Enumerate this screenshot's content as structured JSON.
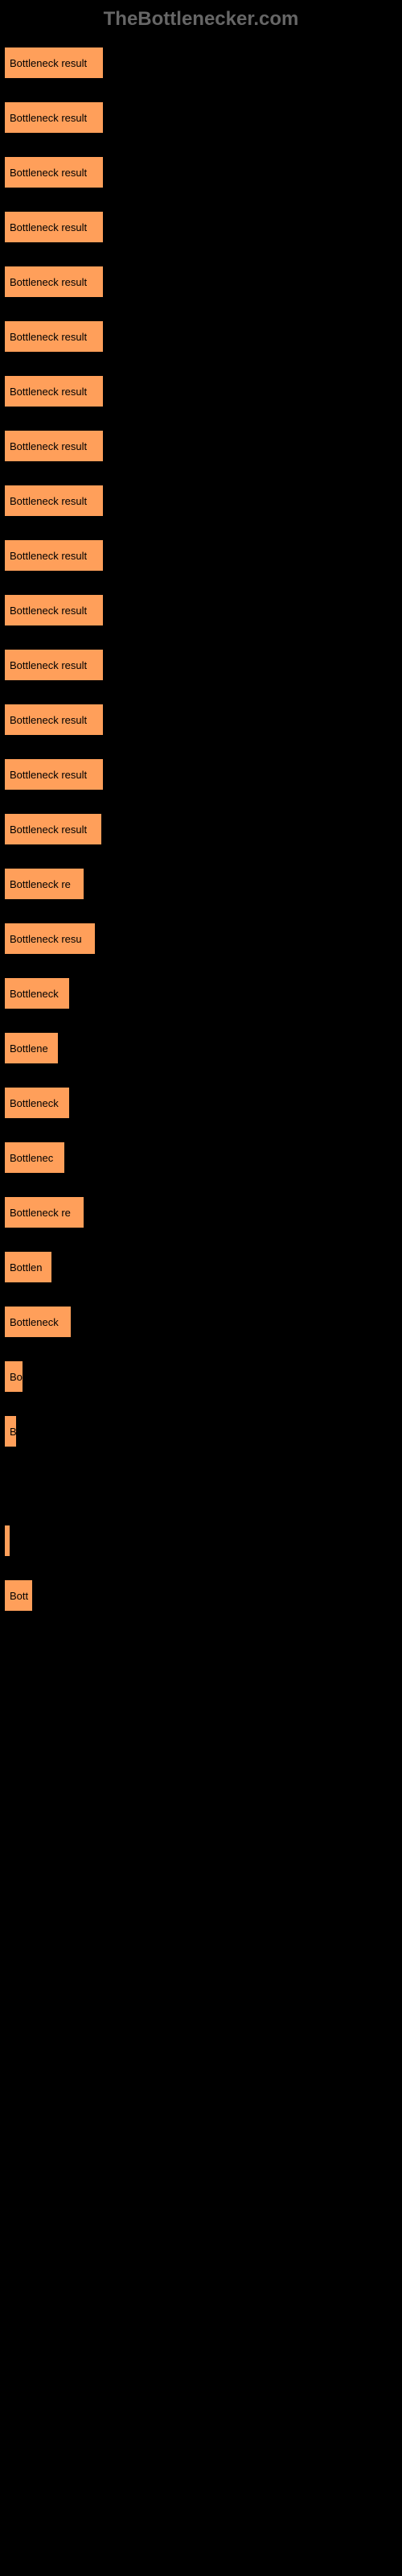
{
  "header": {
    "title": "TheBottlenecker.com"
  },
  "chart": {
    "type": "bar",
    "bar_color": "#ff9f5a",
    "background_color": "#000000",
    "text_color": "#000000",
    "label_fontsize": 13,
    "max_width": 490,
    "bars": [
      {
        "label": "Bottleneck result",
        "width": 124
      },
      {
        "label": "Bottleneck result",
        "width": 124
      },
      {
        "label": "Bottleneck result",
        "width": 124
      },
      {
        "label": "Bottleneck result",
        "width": 124
      },
      {
        "label": "Bottleneck result",
        "width": 124
      },
      {
        "label": "Bottleneck result",
        "width": 124
      },
      {
        "label": "Bottleneck result",
        "width": 124
      },
      {
        "label": "Bottleneck result",
        "width": 124
      },
      {
        "label": "Bottleneck result",
        "width": 124
      },
      {
        "label": "Bottleneck result",
        "width": 124
      },
      {
        "label": "Bottleneck result",
        "width": 124
      },
      {
        "label": "Bottleneck result",
        "width": 124
      },
      {
        "label": "Bottleneck result",
        "width": 124
      },
      {
        "label": "Bottleneck result",
        "width": 124
      },
      {
        "label": "Bottleneck result",
        "width": 122
      },
      {
        "label": "Bottleneck re",
        "width": 100
      },
      {
        "label": "Bottleneck resu",
        "width": 114
      },
      {
        "label": "Bottleneck",
        "width": 82
      },
      {
        "label": "Bottlene",
        "width": 68
      },
      {
        "label": "Bottleneck",
        "width": 82
      },
      {
        "label": "Bottlenec",
        "width": 76
      },
      {
        "label": "Bottleneck re",
        "width": 100
      },
      {
        "label": "Bottlen",
        "width": 60
      },
      {
        "label": "Bottleneck",
        "width": 84
      },
      {
        "label": "Bo",
        "width": 24
      },
      {
        "label": "B",
        "width": 16
      },
      {
        "label": "",
        "width": 0
      },
      {
        "label": "",
        "width": 6
      },
      {
        "label": "Bott",
        "width": 36
      }
    ]
  }
}
